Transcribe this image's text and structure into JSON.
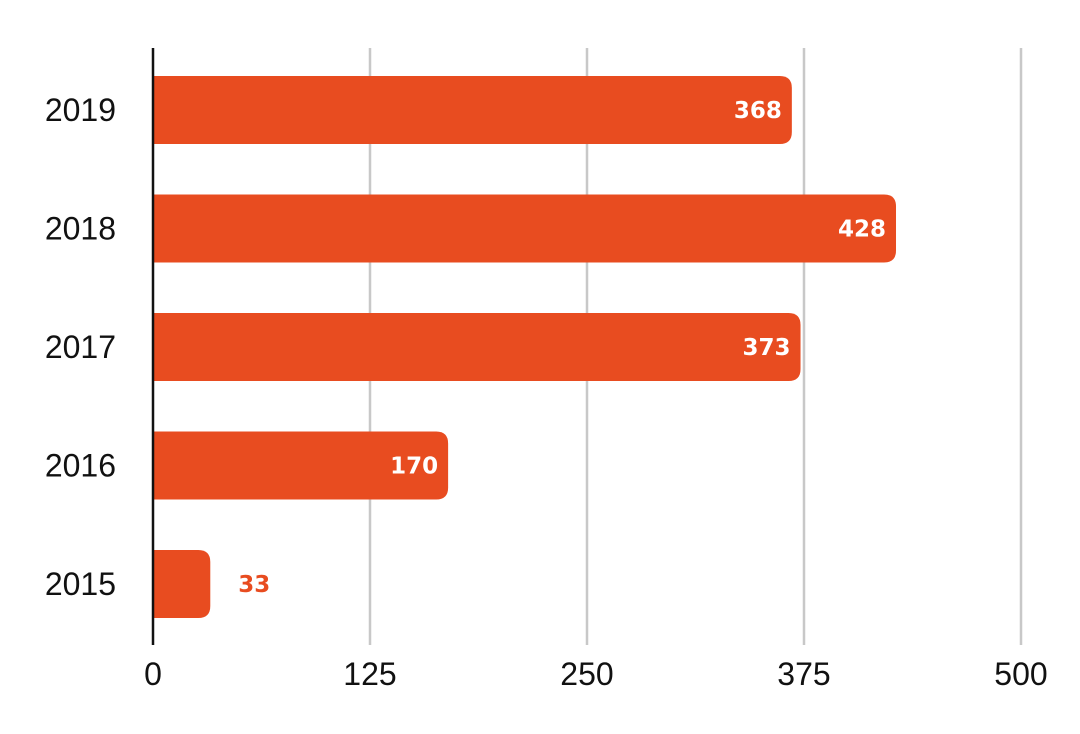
{
  "chart_data": {
    "type": "bar",
    "orientation": "horizontal",
    "title": "",
    "xlabel": "",
    "ylabel": "",
    "categories": [
      "2019",
      "2018",
      "2017",
      "2016",
      "2015"
    ],
    "values": [
      368,
      428,
      373,
      170,
      33
    ],
    "data_labels": [
      "368",
      "428",
      "373",
      "170",
      "33"
    ],
    "xlim": [
      0,
      500
    ],
    "xticks": [
      0,
      125,
      250,
      375,
      500
    ],
    "xtick_labels": [
      "0",
      "125",
      "250",
      "375",
      "500"
    ],
    "grid": "vertical",
    "legend": "none"
  },
  "colors": {
    "bar": "#e84c20",
    "label_inside": "#ffffff",
    "label_outside": "#e84c20",
    "grid": "#c8c8c8",
    "axis": "#111111",
    "text": "#111111"
  }
}
